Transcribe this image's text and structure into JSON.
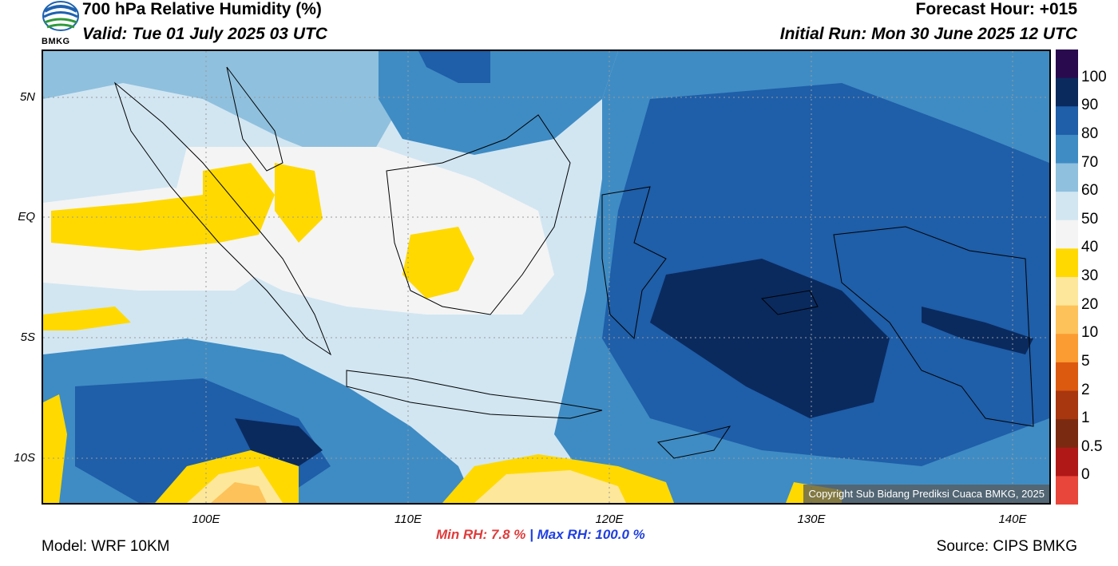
{
  "header": {
    "title": "700 hPa Relative Humidity (%)",
    "valid": "Valid: Tue 01 July 2025 03 UTC",
    "forecast_hour": "Forecast Hour: +015",
    "initial_run": "Initial Run: Mon 30 June 2025 12 UTC",
    "logo_text": "BMKG"
  },
  "map": {
    "lat_labels": [
      "5N",
      "EQ",
      "5S",
      "10S"
    ],
    "lon_labels": [
      "100E",
      "110E",
      "120E",
      "130E",
      "140E"
    ],
    "copyright": "Copyright Sub Bidang Prediksi Cuaca BMKG, 2025"
  },
  "colorbar": {
    "labels": [
      "100",
      "90",
      "80",
      "70",
      "60",
      "50",
      "40",
      "30",
      "20",
      "10",
      "5",
      "2",
      "1",
      "0.5",
      "0"
    ],
    "colors": [
      "#2a0a4e",
      "#0a2a5e",
      "#1f5ea8",
      "#3f8cc4",
      "#8fc0de",
      "#d2e6f2",
      "#f4f4f4",
      "#ffd900",
      "#fde79a",
      "#fdc25a",
      "#fb9c32",
      "#dc5a10",
      "#a8360e",
      "#7a2a10",
      "#b01818",
      "#e8463a"
    ]
  },
  "footer": {
    "min_rh": "Min RH:   7.8 %",
    "separator": "|",
    "max_rh": "Max RH: 100.0 %",
    "model": "Model: WRF 10KM",
    "source": "Source: CIPS BMKG"
  }
}
